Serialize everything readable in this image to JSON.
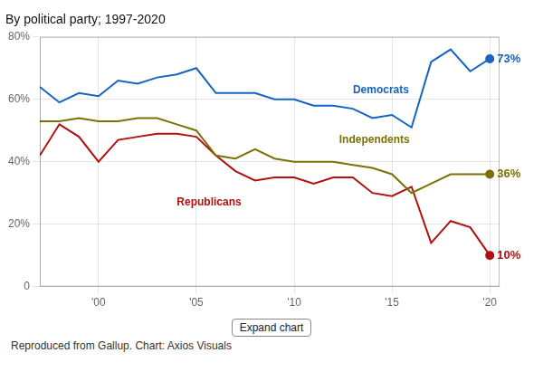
{
  "chart_data": {
    "type": "line",
    "title": "By political party; 1997-2020",
    "x": [
      1997,
      1998,
      1999,
      2000,
      2001,
      2002,
      2003,
      2004,
      2005,
      2006,
      2007,
      2008,
      2009,
      2010,
      2011,
      2012,
      2013,
      2014,
      2015,
      2016,
      2017,
      2018,
      2019,
      2020
    ],
    "series": [
      {
        "name": "Democrats",
        "color": "#1564c0",
        "values": [
          64,
          59,
          62,
          61,
          66,
          65,
          67,
          68,
          70,
          62,
          62,
          62,
          60,
          60,
          58,
          58,
          57,
          54,
          55,
          51,
          72,
          76,
          69,
          73
        ],
        "value_labels": [
          null,
          null,
          null,
          null,
          null,
          null,
          null,
          null,
          null,
          null,
          null,
          null,
          null,
          null,
          null,
          null,
          null,
          null,
          null,
          null,
          null,
          null,
          null,
          "73%"
        ]
      },
      {
        "name": "Independents",
        "color": "#7a7200",
        "values": [
          53,
          53,
          54,
          53,
          53,
          54,
          54,
          52,
          50,
          42,
          41,
          44,
          41,
          40,
          40,
          40,
          39,
          38,
          36,
          30,
          33,
          36,
          36,
          36
        ],
        "value_labels": [
          null,
          null,
          null,
          null,
          null,
          null,
          null,
          null,
          null,
          null,
          null,
          null,
          null,
          null,
          null,
          null,
          null,
          null,
          null,
          null,
          null,
          null,
          null,
          "36%"
        ]
      },
      {
        "name": "Republicans",
        "color": "#b01010",
        "values": [
          42,
          52,
          48,
          40,
          47,
          48,
          49,
          49,
          48,
          42,
          37,
          34,
          35,
          35,
          33,
          35,
          35,
          30,
          29,
          32,
          14,
          21,
          19,
          10
        ],
        "value_labels": [
          null,
          null,
          null,
          null,
          null,
          null,
          null,
          null,
          null,
          null,
          null,
          null,
          null,
          null,
          null,
          null,
          null,
          null,
          null,
          null,
          null,
          null,
          null,
          "10%"
        ]
      }
    ],
    "xlim": [
      1997,
      2020.5
    ],
    "xticks": [
      {
        "value": 2000,
        "label": "'00"
      },
      {
        "value": 2005,
        "label": "'05"
      },
      {
        "value": 2010,
        "label": "'10"
      },
      {
        "value": 2015,
        "label": "'15"
      },
      {
        "value": 2020,
        "label": "'20"
      }
    ],
    "ylim": [
      0,
      80
    ],
    "yticks": [
      0,
      {
        "value": 20,
        "label": "20%"
      },
      {
        "value": 40,
        "label": "40%"
      },
      {
        "value": 60,
        "label": "60%"
      },
      {
        "value": 80,
        "label": "80%"
      }
    ],
    "grid": true,
    "annotations": [
      {
        "text": "Democrats",
        "x": 2013.0,
        "y": 62,
        "color": "#1564c0"
      },
      {
        "text": "Independents",
        "x": 2012.3,
        "y": 46,
        "color": "#7a7200"
      },
      {
        "text": "Republicans",
        "x": 2004.0,
        "y": 26,
        "color": "#b01010"
      },
      {
        "text": "Expand chart"
      },
      {
        "text": "Reproduced from Gallup. Chart: Axios Visuals"
      }
    ]
  }
}
